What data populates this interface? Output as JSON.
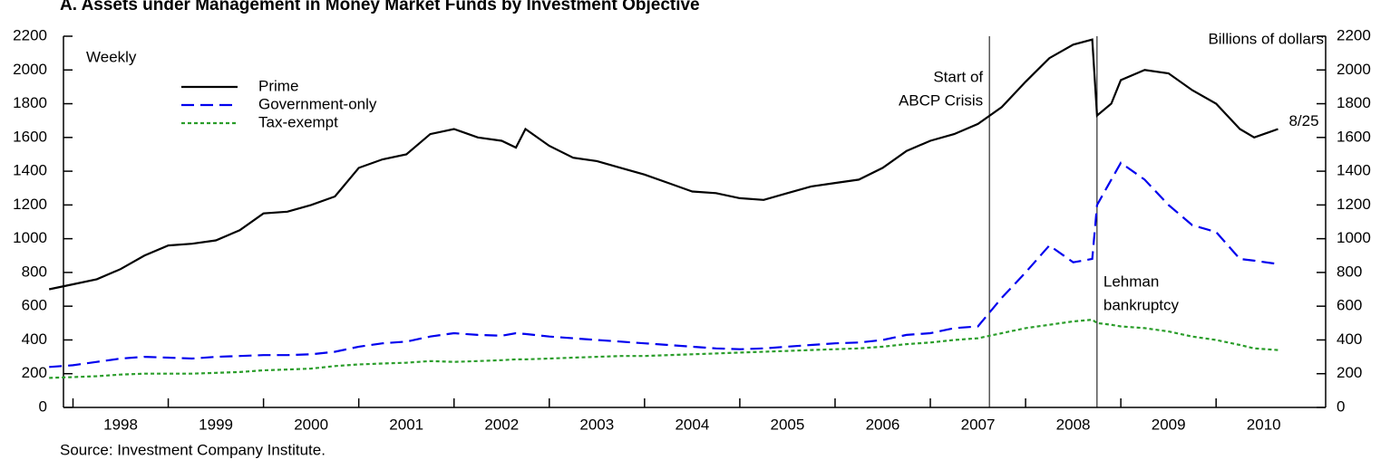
{
  "chart_data": {
    "type": "line",
    "title": "A. Assets under Management in Money Market Funds by Investment Objective",
    "y_label": "Billions of dollars",
    "frequency_note": "Weekly",
    "source": "Source: Investment Company Institute.",
    "end_label": "8/25",
    "x": [
      1997.75,
      1998,
      1998.25,
      1998.5,
      1998.75,
      1999,
      1999.25,
      1999.5,
      1999.75,
      2000,
      2000.25,
      2000.5,
      2000.75,
      2001,
      2001.25,
      2001.5,
      2001.75,
      2002,
      2002.25,
      2002.5,
      2002.65,
      2002.75,
      2003,
      2003.25,
      2003.5,
      2003.75,
      2004,
      2004.25,
      2004.5,
      2004.75,
      2005,
      2005.25,
      2005.5,
      2005.75,
      2006,
      2006.25,
      2006.5,
      2006.75,
      2007,
      2007.25,
      2007.5,
      2007.75,
      2008,
      2008.25,
      2008.5,
      2008.7,
      2008.75,
      2008.9,
      2009,
      2009.25,
      2009.5,
      2009.75,
      2010,
      2010.25,
      2010.4,
      2010.65
    ],
    "series": [
      {
        "name": "Prime",
        "color": "#000000",
        "style": "solid",
        "values": [
          700,
          730,
          760,
          820,
          900,
          960,
          970,
          990,
          1050,
          1150,
          1160,
          1200,
          1250,
          1420,
          1470,
          1500,
          1620,
          1650,
          1600,
          1580,
          1540,
          1650,
          1550,
          1480,
          1460,
          1420,
          1380,
          1330,
          1280,
          1270,
          1240,
          1230,
          1270,
          1310,
          1330,
          1350,
          1420,
          1520,
          1580,
          1620,
          1680,
          1780,
          1930,
          2070,
          2150,
          2180,
          1730,
          1800,
          1940,
          2000,
          1980,
          1880,
          1800,
          1650,
          1600,
          1650
        ]
      },
      {
        "name": "Government-only",
        "color": "#0000ee",
        "style": "dashed",
        "values": [
          240,
          250,
          270,
          290,
          300,
          295,
          290,
          300,
          305,
          310,
          310,
          315,
          330,
          360,
          380,
          390,
          420,
          440,
          430,
          425,
          440,
          435,
          420,
          410,
          400,
          390,
          380,
          370,
          360,
          350,
          345,
          350,
          360,
          370,
          380,
          385,
          400,
          430,
          440,
          470,
          480,
          650,
          800,
          960,
          860,
          880,
          1200,
          1350,
          1450,
          1350,
          1200,
          1080,
          1040,
          880,
          870,
          850
        ]
      },
      {
        "name": "Tax-exempt",
        "color": "#2a9d2a",
        "style": "dotted",
        "values": [
          175,
          180,
          185,
          195,
          200,
          200,
          200,
          205,
          210,
          220,
          225,
          230,
          245,
          255,
          260,
          265,
          275,
          270,
          275,
          280,
          285,
          285,
          290,
          295,
          300,
          305,
          305,
          310,
          315,
          320,
          325,
          330,
          335,
          340,
          345,
          350,
          360,
          375,
          385,
          400,
          410,
          440,
          470,
          490,
          510,
          520,
          500,
          490,
          480,
          470,
          450,
          420,
          400,
          370,
          350,
          340
        ]
      }
    ],
    "events": [
      {
        "x": 2007.62,
        "label": [
          "Start of",
          "ABCP Crisis"
        ]
      },
      {
        "x": 2008.75,
        "label": [
          "Lehman",
          "bankruptcy"
        ]
      }
    ],
    "xlim": [
      1997.9,
      2011.15
    ],
    "xticks": [
      1998,
      1999,
      2000,
      2001,
      2002,
      2003,
      2004,
      2005,
      2006,
      2007,
      2008,
      2009,
      2010
    ],
    "ylim": [
      0,
      2200
    ],
    "yticks": [
      0,
      200,
      400,
      600,
      800,
      1000,
      1200,
      1400,
      1600,
      1800,
      2000,
      2200
    ],
    "y2lim": [
      0,
      2200
    ],
    "y2ticks": [
      0,
      200,
      400,
      600,
      800,
      1000,
      1200,
      1400,
      1600,
      1800,
      2000,
      2200
    ],
    "legend": "upper left",
    "grid": false
  }
}
